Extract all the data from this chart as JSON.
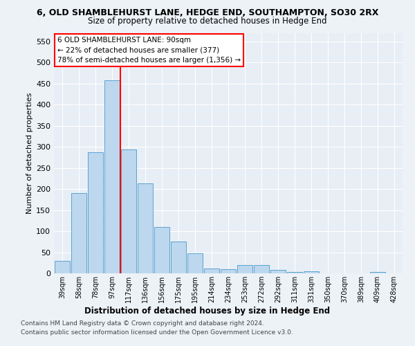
{
  "title1": "6, OLD SHAMBLEHURST LANE, HEDGE END, SOUTHAMPTON, SO30 2RX",
  "title2": "Size of property relative to detached houses in Hedge End",
  "xlabel": "Distribution of detached houses by size in Hedge End",
  "ylabel": "Number of detached properties",
  "categories": [
    "39sqm",
    "58sqm",
    "78sqm",
    "97sqm",
    "117sqm",
    "136sqm",
    "156sqm",
    "175sqm",
    "195sqm",
    "214sqm",
    "234sqm",
    "253sqm",
    "272sqm",
    "292sqm",
    "311sqm",
    "331sqm",
    "350sqm",
    "370sqm",
    "389sqm",
    "409sqm",
    "428sqm"
  ],
  "values": [
    30,
    190,
    287,
    458,
    293,
    213,
    110,
    75,
    47,
    12,
    10,
    20,
    20,
    8,
    3,
    5,
    0,
    0,
    0,
    4,
    0
  ],
  "bar_color": "#bdd7ee",
  "bar_edge_color": "#5ba3d0",
  "vline_x": 3.5,
  "annotation_text": "6 OLD SHAMBLEHURST LANE: 90sqm\n← 22% of detached houses are smaller (377)\n78% of semi-detached houses are larger (1,356) →",
  "ylim": [
    0,
    570
  ],
  "yticks": [
    0,
    50,
    100,
    150,
    200,
    250,
    300,
    350,
    400,
    450,
    500,
    550
  ],
  "footer1": "Contains HM Land Registry data © Crown copyright and database right 2024.",
  "footer2": "Contains public sector information licensed under the Open Government Licence v3.0.",
  "bg_color": "#edf2f7",
  "plot_bg_color": "#e8eef5"
}
